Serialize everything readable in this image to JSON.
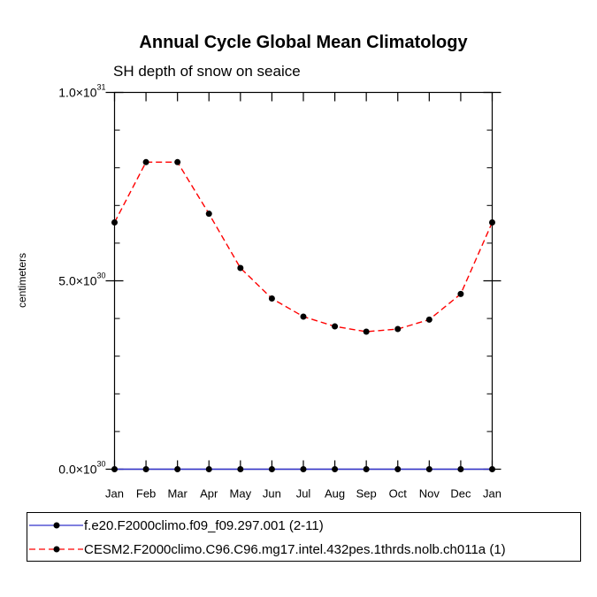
{
  "chart_data": {
    "type": "line",
    "title": "Annual Cycle Global Mean Climatology",
    "subtitle": "SH depth of snow on seaice",
    "ylabel": "centimeters",
    "xlabel": "",
    "categories": [
      "Jan",
      "Feb",
      "Mar",
      "Apr",
      "May",
      "Jun",
      "Jul",
      "Aug",
      "Sep",
      "Oct",
      "Nov",
      "Dec",
      "Jan"
    ],
    "ylim": [
      0,
      1e+31
    ],
    "yticks": [
      {
        "value": 0,
        "mantissa": "0.0",
        "exp": "30"
      },
      {
        "value": 5e+30,
        "mantissa": "5.0",
        "exp": "30"
      },
      {
        "value": 1e+31,
        "mantissa": "1.0",
        "exp": "31"
      }
    ],
    "times_sign": "×10",
    "series": [
      {
        "name": "f.e20.F2000climo.f09_f09.297.001 (2-11)",
        "color": "#3333cc",
        "dash": "solid",
        "values": [
          0,
          0,
          0,
          0,
          0,
          0,
          0,
          0,
          0,
          0,
          0,
          0,
          0
        ]
      },
      {
        "name": "CESM2.F2000climo.C96.C96.mg17.intel.432pes.1thrds.nolb.ch011a (1)",
        "color": "#ff0000",
        "dash": "dashed",
        "values": [
          6.55e+30,
          8.15e+30,
          8.15e+30,
          6.78e+30,
          5.34e+30,
          4.53e+30,
          4.05e+30,
          3.79e+30,
          3.65e+30,
          3.72e+30,
          3.97e+30,
          4.65e+30,
          6.55e+30
        ]
      }
    ]
  }
}
